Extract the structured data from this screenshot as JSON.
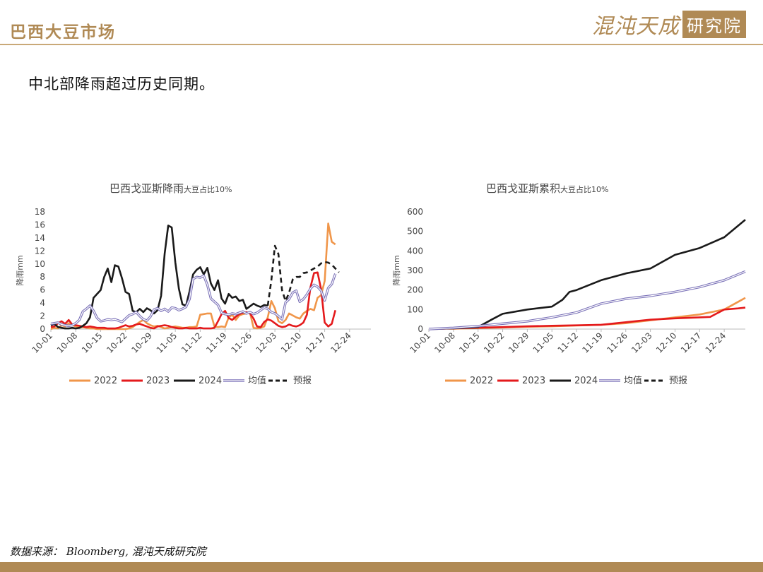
{
  "header": {
    "title": "巴西大豆市场",
    "logo_script": "混沌天成",
    "logo_box": "研究院"
  },
  "subtitle": "中北部降雨超过历史同期。",
  "footer": {
    "source": "数据来源：  Bloomberg,  混沌天成研究院"
  },
  "colors": {
    "accent": "#b08a55",
    "s2022": "#f0964a",
    "s2023": "#e41a1c",
    "s2024": "#1a1a1a",
    "avg": "#7b72b8",
    "forecast": "#1a1a1a"
  },
  "x_ticks": [
    "10-01",
    "10-08",
    "10-15",
    "10-22",
    "10-29",
    "11-05",
    "11-12",
    "11-19",
    "11-26",
    "12-03",
    "12-10",
    "12-17",
    "12-24"
  ],
  "chart_data": [
    {
      "type": "line",
      "title": "巴西戈亚斯降雨",
      "title_small": "大豆占比10%",
      "ylabel": "降雨mm",
      "ylim": [
        0,
        18
      ],
      "yticks": [
        0,
        2,
        4,
        6,
        8,
        10,
        12,
        14,
        16,
        18
      ],
      "x_ticks": [
        "10-01",
        "10-08",
        "10-15",
        "10-22",
        "10-29",
        "11-05",
        "11-12",
        "11-19",
        "11-26",
        "12-03",
        "12-10",
        "12-17",
        "12-24"
      ],
      "legend_position": "bottom",
      "series": [
        {
          "name": "2022",
          "color": "#f0964a",
          "dash": false,
          "start_day": 0,
          "values": [
            0,
            0.2,
            0.1,
            0.6,
            0.4,
            0.9,
            0.6,
            0.4,
            0.2,
            0.3,
            0.2,
            0.1,
            0.1,
            0,
            0,
            0,
            0,
            0,
            0,
            0,
            0,
            0,
            0.1,
            0.3,
            0.7,
            1.1,
            1.4,
            0.9,
            0.6,
            0.4,
            0.5,
            0.3,
            0.1,
            0.2,
            0.3,
            0.4,
            0.3,
            0.2,
            0.2,
            0.3,
            0.3,
            0.4,
            2.2,
            2.3,
            2.4,
            2.4,
            0.4,
            0.3,
            0.4,
            0.3,
            1.8,
            2.2,
            1.4,
            2.1,
            2.3,
            2.4,
            2.5,
            0.2,
            0.1,
            0.2,
            0.4,
            1.8,
            4.3,
            3.2,
            1.2,
            0.9,
            1.4,
            2.4,
            2.1,
            1.8,
            1.6,
            2.4,
            2.8,
            3.1,
            2.9,
            4.8,
            5.2,
            7.4,
            16.2,
            13.4,
            13.0
          ]
        },
        {
          "name": "2023",
          "color": "#e41a1c",
          "dash": false,
          "start_day": 0,
          "values": [
            0.3,
            0.4,
            0.9,
            1.2,
            0.8,
            1.4,
            0.7,
            0.6,
            0.5,
            0.4,
            0.3,
            0.4,
            0.3,
            0.2,
            0.2,
            0.2,
            0.1,
            0.1,
            0.1,
            0.2,
            0.4,
            0.6,
            0.4,
            0.5,
            0.7,
            0.8,
            0.6,
            0.4,
            0.2,
            0.1,
            0.4,
            0.5,
            0.6,
            0.5,
            0.3,
            0.2,
            0.1,
            0.1,
            0.2,
            0.1,
            0.1,
            0.1,
            0.2,
            0.1,
            0.1,
            0.1,
            0.2,
            1.2,
            2.3,
            2.8,
            1.7,
            1.4,
            1.9,
            2.3,
            2.5,
            2.6,
            2.4,
            1.6,
            0.4,
            0.3,
            1.1,
            1.5,
            1.3,
            0.9,
            0.5,
            0.3,
            0.4,
            0.7,
            0.5,
            0.4,
            0.6,
            1.0,
            2.2,
            6.4,
            8.6,
            8.7,
            6.1,
            1.0,
            0.4,
            0.8,
            2.9
          ]
        },
        {
          "name": "2024",
          "color": "#1a1a1a",
          "dash": false,
          "start_day": 0,
          "values": [
            0.6,
            0.8,
            0.3,
            0.2,
            0.1,
            0.1,
            0.2,
            0.1,
            0.2,
            0.5,
            0.9,
            1.8,
            4.8,
            5.4,
            6.0,
            8.0,
            9.3,
            7.2,
            9.8,
            9.6,
            7.8,
            5.7,
            5.4,
            2.8,
            2.6,
            3.1,
            2.6,
            3.2,
            2.9,
            2.4,
            2.9,
            5.1,
            11.6,
            15.9,
            15.6,
            10.2,
            6.2,
            3.8,
            3.6,
            5.8,
            8.4,
            9.1,
            9.5,
            8.4,
            9.4,
            7.0,
            6.0,
            7.5,
            4.7,
            3.9,
            5.4,
            4.8,
            5.0,
            4.3,
            4.5,
            3.1,
            3.5,
            3.9,
            3.6,
            3.4,
            3.7,
            3.6
          ]
        },
        {
          "name": "均值",
          "color": "#7b72b8",
          "dash": false,
          "start_day": 0,
          "values": [
            0.8,
            0.9,
            1.0,
            0.7,
            0.6,
            0.5,
            0.6,
            0.9,
            1.4,
            2.7,
            3.1,
            3.6,
            2.8,
            1.7,
            1.2,
            1.3,
            1.5,
            1.4,
            1.5,
            1.3,
            1.1,
            1.6,
            2.1,
            2.3,
            2.6,
            2.0,
            1.5,
            1.3,
            1.9,
            3.0,
            3.2,
            2.8,
            3.1,
            2.7,
            3.3,
            3.2,
            2.9,
            3.1,
            3.4,
            4.6,
            7.7,
            8.0,
            7.9,
            8.2,
            6.8,
            4.7,
            4.2,
            3.7,
            2.5,
            2.3,
            2.2,
            2.4,
            2.3,
            2.5,
            2.7,
            2.4,
            2.6,
            2.3,
            2.5,
            2.9,
            3.3,
            3.1,
            2.6,
            2.4,
            2.0,
            1.5,
            4.1,
            4.6,
            5.6,
            5.9,
            4.2,
            4.6,
            5.3,
            6.2,
            6.8,
            6.5,
            5.9,
            4.4,
            6.3,
            6.9,
            8.5
          ]
        },
        {
          "name": "预报",
          "color": "#1a1a1a",
          "dash": true,
          "start_day": 61,
          "values": [
            3.6,
            7.5,
            12.8,
            11.5,
            6.0,
            4.3,
            5.6,
            7.6,
            8.0,
            8.0,
            8.6,
            8.7,
            9.0,
            9.3,
            9.6,
            10.1,
            10.3,
            10.2,
            9.9,
            9.3,
            8.7
          ]
        }
      ]
    },
    {
      "type": "line",
      "title": "巴西戈亚斯累积",
      "title_small": "大豆占比10%",
      "ylabel": "降雨mm",
      "ylim": [
        0,
        600
      ],
      "yticks": [
        0,
        100,
        200,
        300,
        400,
        500,
        600
      ],
      "x_ticks": [
        "10-01",
        "10-08",
        "10-15",
        "10-22",
        "10-29",
        "11-05",
        "11-12",
        "11-19",
        "11-26",
        "12-03",
        "12-10",
        "12-17",
        "12-24"
      ],
      "legend_position": "bottom",
      "series": [
        {
          "name": "2022",
          "color": "#f0964a",
          "dash": false,
          "start_day": 0,
          "points": [
            [
              0,
              0
            ],
            [
              7,
              2
            ],
            [
              14,
              5
            ],
            [
              21,
              8
            ],
            [
              28,
              12
            ],
            [
              35,
              14
            ],
            [
              42,
              18
            ],
            [
              49,
              22
            ],
            [
              56,
              30
            ],
            [
              63,
              45
            ],
            [
              70,
              60
            ],
            [
              77,
              75
            ],
            [
              84,
              100
            ],
            [
              88,
              140
            ],
            [
              90,
              160
            ]
          ]
        },
        {
          "name": "2023",
          "color": "#e41a1c",
          "dash": false,
          "start_day": 0,
          "points": [
            [
              0,
              0
            ],
            [
              7,
              4
            ],
            [
              14,
              7
            ],
            [
              21,
              10
            ],
            [
              28,
              14
            ],
            [
              35,
              17
            ],
            [
              42,
              19
            ],
            [
              49,
              22
            ],
            [
              56,
              35
            ],
            [
              63,
              48
            ],
            [
              70,
              55
            ],
            [
              77,
              60
            ],
            [
              80,
              62
            ],
            [
              84,
              100
            ],
            [
              88,
              106
            ],
            [
              90,
              110
            ]
          ]
        },
        {
          "name": "2024",
          "color": "#1a1a1a",
          "dash": false,
          "start_day": 0,
          "points": [
            [
              0,
              0
            ],
            [
              7,
              4
            ],
            [
              14,
              10
            ],
            [
              18,
              50
            ],
            [
              21,
              78
            ],
            [
              28,
              100
            ],
            [
              35,
              115
            ],
            [
              38,
              150
            ],
            [
              40,
              190
            ],
            [
              42,
              200
            ],
            [
              49,
              250
            ],
            [
              56,
              285
            ],
            [
              63,
              310
            ],
            [
              70,
              380
            ],
            [
              77,
              415
            ],
            [
              84,
              470
            ],
            [
              90,
              560
            ]
          ]
        },
        {
          "name": "均值",
          "color": "#7b72b8",
          "dash": false,
          "start_day": 0,
          "points": [
            [
              0,
              0
            ],
            [
              7,
              6
            ],
            [
              14,
              15
            ],
            [
              21,
              28
            ],
            [
              28,
              40
            ],
            [
              35,
              60
            ],
            [
              42,
              85
            ],
            [
              49,
              130
            ],
            [
              56,
              155
            ],
            [
              63,
              170
            ],
            [
              70,
              190
            ],
            [
              77,
              215
            ],
            [
              84,
              250
            ],
            [
              90,
              295
            ]
          ]
        },
        {
          "name": "预报",
          "color": "#1a1a1a",
          "dash": true,
          "start_day": 90,
          "points": []
        }
      ]
    }
  ]
}
